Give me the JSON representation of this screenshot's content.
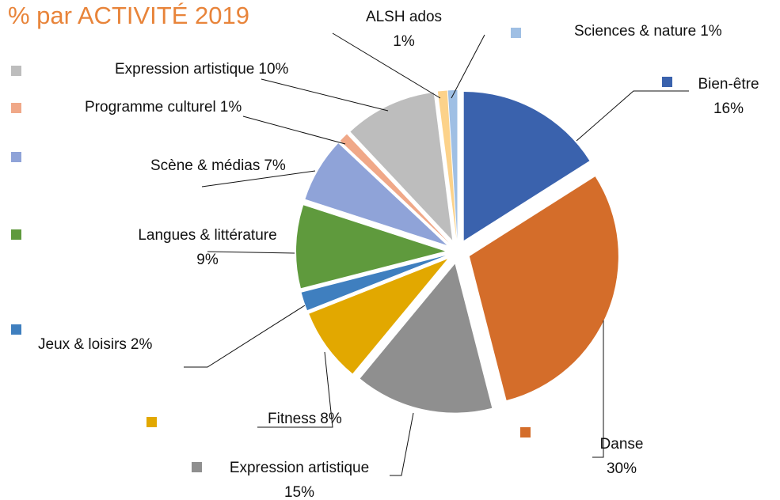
{
  "chart_data": {
    "type": "pie",
    "title": "% par ACTIVITÉ 2019",
    "categories": [
      "Bien-être",
      "Danse",
      "Expression artistique",
      "Fitness",
      "Jeux & loisirs",
      "Langues & littérature",
      "Scène & médias",
      "Programme culturel",
      "Expression artistique",
      "ALSH ados",
      "Sciences & nature"
    ],
    "values": [
      16,
      30,
      15,
      8,
      2,
      9,
      7,
      1,
      10,
      1,
      1
    ],
    "value_labels": [
      "16%",
      "30%",
      "15%",
      "8%",
      "2%",
      "9%",
      "7%",
      "1%",
      "10%",
      "1%",
      "1%"
    ],
    "colors": [
      "#3a62ad",
      "#d46d2a",
      "#8f8f8f",
      "#e2a800",
      "#3f7fbf",
      "#5f9a3d",
      "#8fa3d8",
      "#f0a888",
      "#bdbdbd",
      "#fcd28a",
      "#9fbfe4"
    ]
  }
}
